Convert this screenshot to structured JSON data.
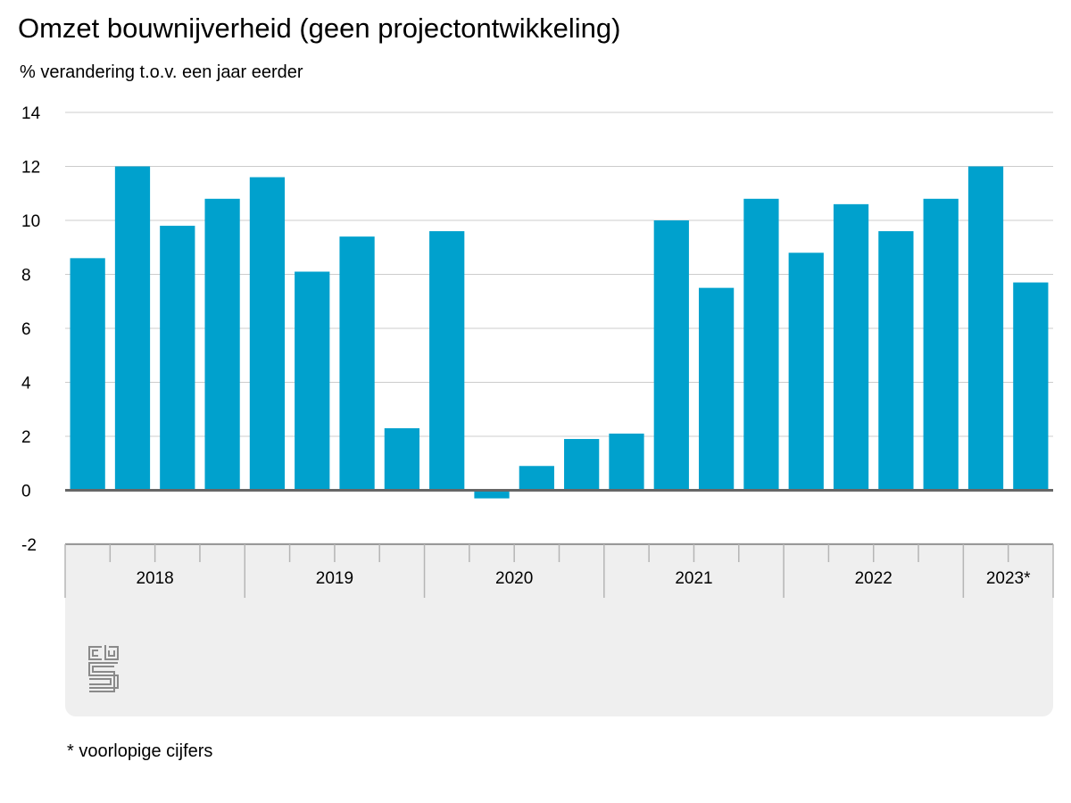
{
  "chart_data": {
    "type": "bar",
    "title": "Omzet bouwnijverheid (geen projectontwikkeling)",
    "subtitle": "% verandering t.o.v. een jaar eerder",
    "xlabel": "",
    "ylabel": "",
    "ylim": [
      -2,
      14
    ],
    "yticks": [
      -2,
      0,
      2,
      4,
      6,
      8,
      10,
      12,
      14
    ],
    "grid": true,
    "bar_color": "#00a1cd",
    "year_groups": [
      {
        "label": "2018",
        "quarters": 4
      },
      {
        "label": "2019",
        "quarters": 4
      },
      {
        "label": "2020",
        "quarters": 4
      },
      {
        "label": "2021",
        "quarters": 4
      },
      {
        "label": "2022",
        "quarters": 4
      },
      {
        "label": "2023*",
        "quarters": 2
      }
    ],
    "categories": [
      "2018 Q1",
      "2018 Q2",
      "2018 Q3",
      "2018 Q4",
      "2019 Q1",
      "2019 Q2",
      "2019 Q3",
      "2019 Q4",
      "2020 Q1",
      "2020 Q2",
      "2020 Q3",
      "2020 Q4",
      "2021 Q1",
      "2021 Q2",
      "2021 Q3",
      "2021 Q4",
      "2022 Q1",
      "2022 Q2",
      "2022 Q3",
      "2022 Q4",
      "2023 Q1",
      "2023 Q2"
    ],
    "values": [
      8.6,
      12.0,
      9.8,
      10.8,
      11.6,
      8.1,
      9.4,
      2.3,
      9.6,
      -0.3,
      0.9,
      1.9,
      2.1,
      10.0,
      7.5,
      10.8,
      8.8,
      10.6,
      9.6,
      10.8,
      12.0,
      7.7
    ]
  },
  "footnote": "* voorlopige cijfers",
  "logo": {
    "text": "cbs",
    "icon": "cbs-logo-icon"
  }
}
